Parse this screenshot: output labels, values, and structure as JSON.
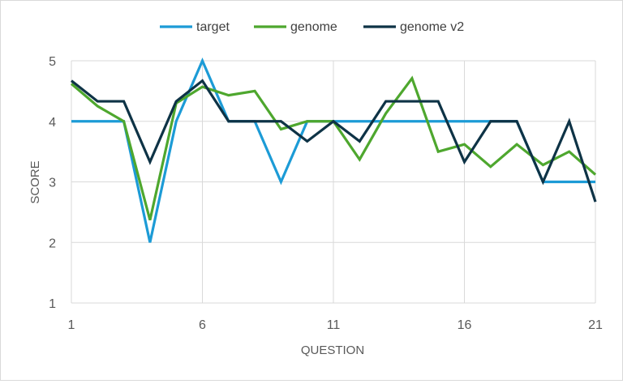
{
  "chart_data": {
    "type": "line",
    "xlabel": "QUESTION",
    "ylabel": "SCORE",
    "xlim": [
      1,
      21
    ],
    "ylim": [
      1,
      5
    ],
    "x_ticks": [
      1,
      6,
      11,
      16,
      21
    ],
    "y_ticks": [
      1,
      2,
      3,
      4,
      5
    ],
    "grid": "on",
    "legend_position": "top",
    "x": [
      1,
      2,
      3,
      4,
      5,
      6,
      7,
      8,
      9,
      10,
      11,
      12,
      13,
      14,
      15,
      16,
      17,
      18,
      19,
      20,
      21
    ],
    "series": [
      {
        "name": "target",
        "color": "#1c9bd6",
        "values": [
          4,
          4,
          4,
          2,
          4,
          5,
          4,
          4,
          3,
          4,
          4,
          4,
          4,
          4,
          4,
          4,
          4,
          4,
          3,
          3,
          3
        ]
      },
      {
        "name": "genome",
        "color": "#4ea72e",
        "values": [
          4.62,
          4.25,
          4.0,
          2.37,
          4.3,
          4.57,
          4.43,
          4.5,
          3.87,
          4.0,
          4.0,
          3.37,
          4.13,
          4.71,
          3.5,
          3.62,
          3.25,
          3.62,
          3.28,
          3.5,
          3.12
        ]
      },
      {
        "name": "genome v2",
        "color": "#0e3346",
        "values": [
          4.67,
          4.33,
          4.33,
          3.33,
          4.33,
          4.67,
          4.0,
          4.0,
          4.0,
          3.67,
          4.0,
          3.67,
          4.33,
          4.33,
          4.33,
          3.33,
          4.0,
          4.0,
          3.0,
          4.0,
          2.67
        ]
      }
    ]
  }
}
